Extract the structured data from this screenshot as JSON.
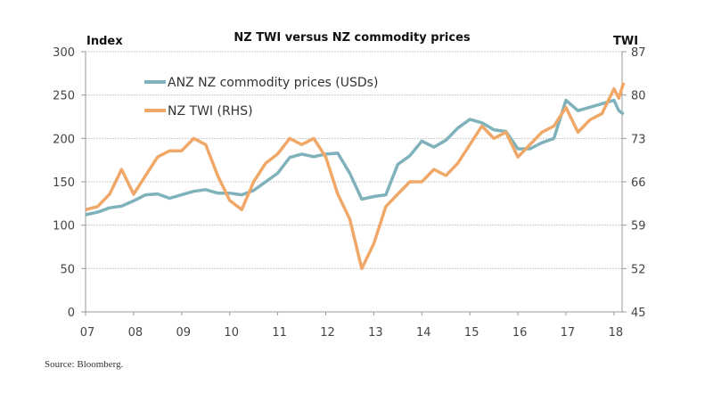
{
  "chart_data": {
    "type": "line",
    "title": "NZ TWI versus NZ commodity prices",
    "ylabel_left": "Index",
    "ylabel_right": "TWI",
    "xlim": [
      2007,
      2018.2
    ],
    "ylim_left": [
      0,
      300
    ],
    "ylim_right": [
      45,
      87
    ],
    "yticks_left": [
      0,
      50,
      100,
      150,
      200,
      250,
      300
    ],
    "yticks_right": [
      45,
      52,
      59,
      66,
      73,
      80,
      87
    ],
    "xticks": [
      2007,
      2008,
      2009,
      2010,
      2011,
      2012,
      2013,
      2014,
      2015,
      2016,
      2017,
      2018
    ],
    "xtick_labels": [
      "07",
      "08",
      "09",
      "10",
      "11",
      "12",
      "13",
      "14",
      "15",
      "16",
      "17",
      "18"
    ],
    "grid": true,
    "legend_position": "top-left",
    "series": [
      {
        "name": "ANZ NZ commodity prices (USDs)",
        "axis": "left",
        "color": "#7fb2ba",
        "x": [
          2007.0,
          2007.25,
          2007.5,
          2007.75,
          2008.0,
          2008.25,
          2008.5,
          2008.75,
          2009.0,
          2009.25,
          2009.5,
          2009.75,
          2010.0,
          2010.25,
          2010.5,
          2010.75,
          2011.0,
          2011.25,
          2011.5,
          2011.75,
          2012.0,
          2012.25,
          2012.5,
          2012.75,
          2013.0,
          2013.25,
          2013.5,
          2013.75,
          2014.0,
          2014.25,
          2014.5,
          2014.75,
          2015.0,
          2015.25,
          2015.5,
          2015.75,
          2016.0,
          2016.25,
          2016.5,
          2016.75,
          2017.0,
          2017.25,
          2017.5,
          2017.75,
          2018.0,
          2018.1,
          2018.2
        ],
        "values": [
          112,
          115,
          120,
          122,
          128,
          135,
          136,
          131,
          135,
          139,
          141,
          137,
          137,
          135,
          140,
          150,
          160,
          178,
          182,
          179,
          182,
          183,
          160,
          130,
          133,
          135,
          170,
          180,
          197,
          190,
          198,
          212,
          222,
          218,
          210,
          208,
          188,
          188,
          195,
          200,
          244,
          232,
          236,
          240,
          244,
          232,
          228
        ]
      },
      {
        "name": "NZ TWI (RHS)",
        "axis": "right",
        "color": "#f0a868",
        "x": [
          2007.0,
          2007.25,
          2007.5,
          2007.75,
          2008.0,
          2008.25,
          2008.5,
          2008.75,
          2009.0,
          2009.25,
          2009.5,
          2009.75,
          2010.0,
          2010.25,
          2010.5,
          2010.75,
          2011.0,
          2011.25,
          2011.5,
          2011.75,
          2012.0,
          2012.25,
          2012.5,
          2012.75,
          2013.0,
          2013.25,
          2013.5,
          2013.75,
          2014.0,
          2014.25,
          2014.5,
          2014.75,
          2015.0,
          2015.25,
          2015.5,
          2015.75,
          2016.0,
          2016.25,
          2016.5,
          2016.75,
          2017.0,
          2017.25,
          2017.5,
          2017.75,
          2018.0,
          2018.1,
          2018.2
        ],
        "values": [
          61.5,
          62,
          64,
          68,
          64,
          67,
          70,
          71,
          71,
          73,
          72,
          67,
          63,
          61.5,
          66,
          69,
          70.5,
          73,
          72,
          73,
          70,
          64,
          60,
          52,
          56,
          62,
          64,
          66,
          66,
          68,
          67,
          69,
          72,
          75,
          73,
          74,
          70,
          72,
          74,
          75,
          78,
          74,
          76,
          77,
          81,
          79.5,
          82
        ]
      }
    ],
    "source": "Source: Bloomberg."
  }
}
